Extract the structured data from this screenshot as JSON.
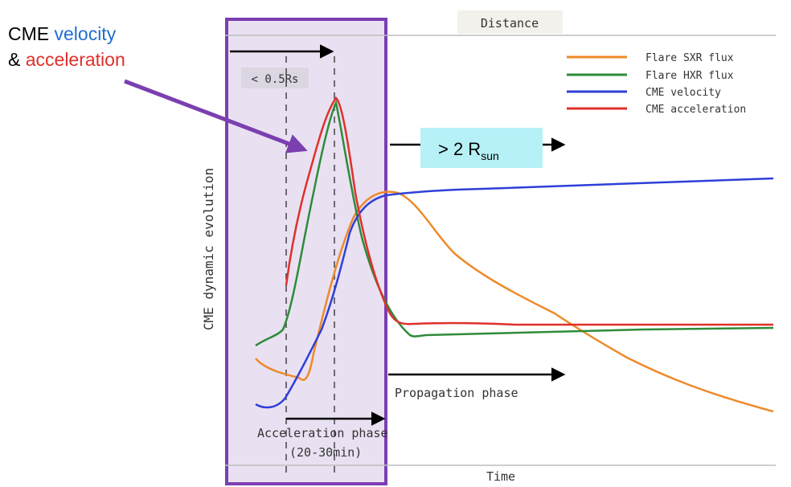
{
  "colors": {
    "sxr": "#ee8a2a",
    "hxr": "#2e8b3a",
    "velocity": "#2f3fd8",
    "acceleration": "#e0302a",
    "highlight_border": "#7b3fb0",
    "highlight_fill": "#e9e1f2",
    "callout_fill": "#b6f1f7",
    "arrow": "#000000",
    "callout_arrow": "#7b3fb0"
  },
  "top_label": "Distance",
  "y_axis_label": "CME dynamic evolution",
  "x_axis_label": "Time",
  "legend": [
    {
      "label": "Flare SXR flux",
      "color_key": "sxr"
    },
    {
      "label": "Flare HXR flux",
      "color_key": "hxr"
    },
    {
      "label": "CME velocity",
      "color_key": "velocity"
    },
    {
      "label": "CME acceleration",
      "color_key": "acceleration"
    }
  ],
  "distance_marker": "< 0.5Rs",
  "acceleration_phase": {
    "line1": "Acceleration phase",
    "line2": "(20-30min)"
  },
  "propagation_phase": "Propagation phase",
  "callout": {
    "prefix": "> 2 R",
    "subscript": "sun"
  },
  "annotation": {
    "line1_prefix": "CME ",
    "line1_highlight": "velocity",
    "line2_prefix": "& ",
    "line2_highlight": "acceleration"
  },
  "annotation_colors": {
    "text": "#000000",
    "velocity": "#1f6fd0",
    "acceleration": "#e0302a"
  }
}
